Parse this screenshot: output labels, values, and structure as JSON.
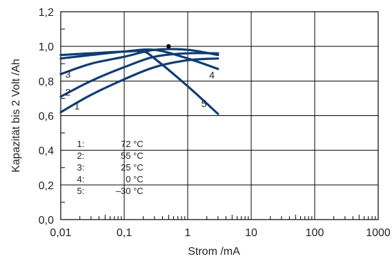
{
  "chart_data": {
    "type": "line",
    "xlabel": "Strom /mA",
    "ylabel": "Kapazität bis 2 Volt /Ah",
    "x_scale": "log",
    "xlim": [
      0.01,
      1000
    ],
    "ylim": [
      0.0,
      1.2
    ],
    "x_ticks": [
      "0,01",
      "0,1",
      "1",
      "10",
      "100",
      "1000"
    ],
    "y_ticks": [
      "0,0",
      "0,2",
      "0,4",
      "0,6",
      "0,8",
      "1,0",
      "1,2"
    ],
    "grid": true,
    "series": [
      {
        "label": "1",
        "points": [
          [
            0.01,
            0.62
          ],
          [
            0.03,
            0.72
          ],
          [
            0.1,
            0.81
          ],
          [
            0.3,
            0.88
          ],
          [
            1,
            0.92
          ],
          [
            3,
            0.93
          ]
        ]
      },
      {
        "label": "2",
        "points": [
          [
            0.01,
            0.71
          ],
          [
            0.03,
            0.8
          ],
          [
            0.1,
            0.88
          ],
          [
            0.3,
            0.94
          ],
          [
            1,
            0.96
          ],
          [
            3,
            0.96
          ]
        ]
      },
      {
        "label": "3",
        "points": [
          [
            0.01,
            0.84
          ],
          [
            0.03,
            0.9
          ],
          [
            0.1,
            0.94
          ],
          [
            0.3,
            0.98
          ],
          [
            1,
            0.98
          ],
          [
            3,
            0.95
          ]
        ]
      },
      {
        "label": "4",
        "points": [
          [
            0.01,
            0.93
          ],
          [
            0.03,
            0.95
          ],
          [
            0.1,
            0.97
          ],
          [
            0.3,
            0.98
          ],
          [
            1,
            0.93
          ],
          [
            3,
            0.87
          ]
        ]
      },
      {
        "label": "5",
        "points": [
          [
            0.01,
            0.95
          ],
          [
            0.03,
            0.96
          ],
          [
            0.1,
            0.97
          ],
          [
            0.2,
            0.97
          ],
          [
            0.3,
            0.93
          ],
          [
            1,
            0.77
          ],
          [
            3,
            0.61
          ]
        ]
      }
    ],
    "marker_point": [
      0.5,
      1.0
    ],
    "legend": {
      "position": "bottom-left",
      "entries": [
        {
          "key": "1:",
          "value": "72 °C"
        },
        {
          "key": "2:",
          "value": "55 °C"
        },
        {
          "key": "3:",
          "value": "25 °C"
        },
        {
          "key": "4:",
          "value": "0 °C"
        },
        {
          "key": "5:",
          "value": "–30 °C"
        }
      ]
    },
    "line_color": "#0f3d73"
  }
}
